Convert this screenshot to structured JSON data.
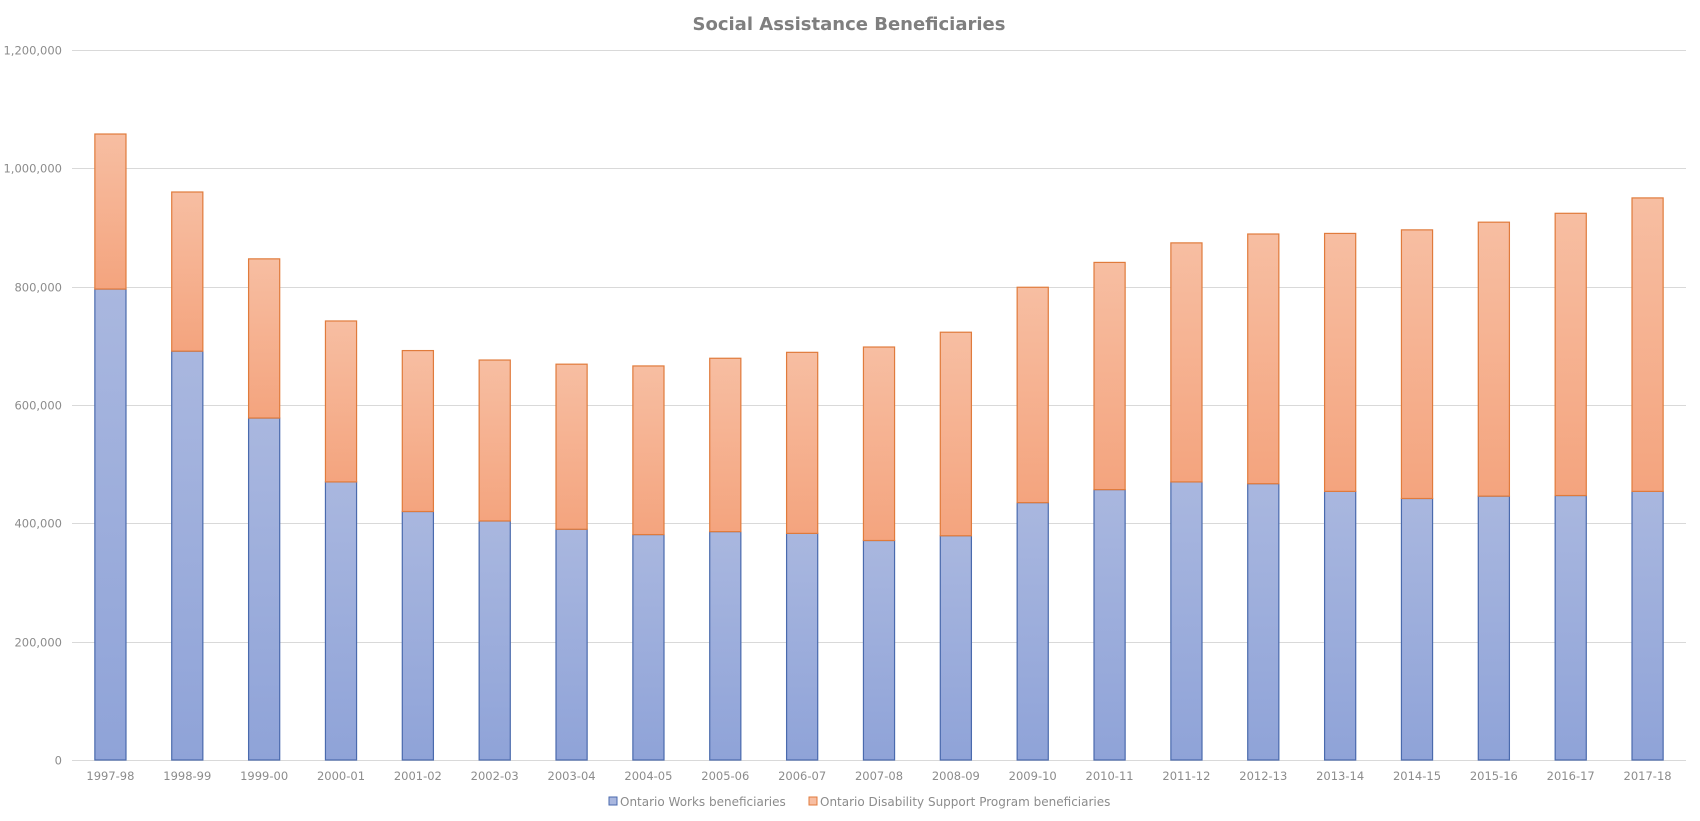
{
  "chart_data": {
    "type": "bar",
    "stacked": true,
    "title": "Social Assistance Beneficiaries",
    "xlabel": "",
    "ylabel": "",
    "ylim": [
      0,
      1200000
    ],
    "yticks": [
      0,
      200000,
      400000,
      600000,
      800000,
      1000000,
      1200000
    ],
    "ytick_labels": [
      "0",
      "200,000",
      "400,000",
      "600,000",
      "800,000",
      "1,000,000",
      "1,200,000"
    ],
    "grid": true,
    "legend_position": "bottom",
    "categories": [
      "1997-98",
      "1998-99",
      "1999-00",
      "2000-01",
      "2001-02",
      "2002-03",
      "2003-04",
      "2004-05",
      "2005-06",
      "2006-07",
      "2007-08",
      "2008-09",
      "2009-10",
      "2010-11",
      "2011-12",
      "2012-13",
      "2013-14",
      "2014-15",
      "2015-16",
      "2016-17",
      "2017-18"
    ],
    "series": [
      {
        "name": "Ontario Works beneficiaries",
        "color": "#8fa3d8",
        "color_light": "#a9b7df",
        "border": "#4a6aad",
        "values": [
          796000,
          691000,
          578000,
          470000,
          420000,
          404000,
          390000,
          381000,
          386000,
          383000,
          371000,
          379000,
          435000,
          457000,
          470000,
          467000,
          454000,
          442000,
          446000,
          447000,
          454000
        ]
      },
      {
        "name": "Ontario Disability Support Program beneficiaries",
        "color": "#f4a47e",
        "color_light": "#f7bea2",
        "border": "#e07b3c",
        "values": [
          262000,
          269000,
          269000,
          272000,
          272000,
          272000,
          279000,
          285000,
          293000,
          306000,
          327000,
          344000,
          364000,
          384000,
          404000,
          422000,
          436000,
          454000,
          463000,
          477000,
          496000
        ]
      }
    ]
  }
}
